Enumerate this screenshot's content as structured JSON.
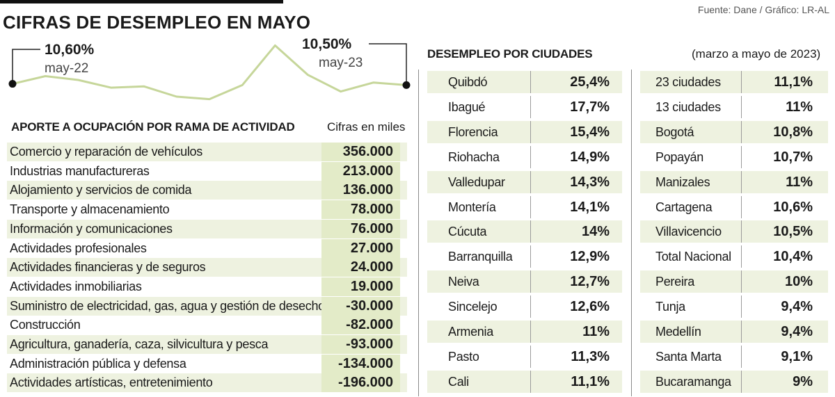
{
  "header": {
    "title": "CIFRAS DE DESEMPLEO EN MAYO",
    "source": "Fuente: Dane / Gráfico: LR-AL"
  },
  "trend": {
    "start_value": "10,60%",
    "start_date": "may-22",
    "end_value": "10,50%",
    "end_date": "may-23",
    "line_color": "#c6d69a",
    "marker_color": "#111111"
  },
  "chart_data": [
    {
      "type": "line",
      "title": "",
      "xlabel": "",
      "ylabel": "",
      "x": [
        "may-22",
        "",
        "",
        "",
        "",
        "",
        "",
        "",
        "",
        "",
        "",
        "",
        "may-23"
      ],
      "series": [
        {
          "values": [
            10.6,
            11.2,
            10.9,
            10.3,
            10.4,
            9.6,
            9.4,
            10.5,
            13.6,
            11.3,
            10.0,
            10.7,
            10.5
          ]
        }
      ],
      "ylim": [
        9.0,
        14.0
      ],
      "grid": false
    },
    {
      "type": "bar",
      "title": "APORTE A OCUPACIÓN POR RAMA DE ACTIVIDAD",
      "unit_note": "Cifras en miles",
      "categories": [
        "Comercio y reparación de vehículos",
        "Industrias manufactureras",
        "Alojamiento y servicios de comida",
        "Transporte y almacenamiento",
        "Información y comunicaciones",
        "Actividades profesionales",
        "Actividades financieras y de seguros",
        "Actividades inmobiliarias",
        "Suministro de electricidad, gas, agua y gestión de desechos",
        "Construcción",
        "Agricultura, ganadería, caza, silvicultura y pesca",
        "Administración pública y defensa",
        "Actividades artísticas, entretenimiento"
      ],
      "values": [
        356000,
        213000,
        136000,
        78000,
        76000,
        27000,
        24000,
        19000,
        -30000,
        -82000,
        -93000,
        -134000,
        -196000
      ],
      "labels": [
        "356.000",
        "213.000",
        "136.000",
        "78.000",
        "76.000",
        "27.000",
        "24.000",
        "19.000",
        "-30.000",
        "-82.000",
        "-93.000",
        "-134.000",
        "-196.000"
      ]
    },
    {
      "type": "table",
      "title": "DESEMPLEO POR CIUDADES",
      "subtitle": "(marzo a mayo de 2023)",
      "left": [
        {
          "city": "Quibdó",
          "value": "25,4%"
        },
        {
          "city": "Ibagué",
          "value": "17,7%"
        },
        {
          "city": "Florencia",
          "value": "15,4%"
        },
        {
          "city": "Riohacha",
          "value": "14,9%"
        },
        {
          "city": "Valledupar",
          "value": "14,3%"
        },
        {
          "city": "Montería",
          "value": "14,1%"
        },
        {
          "city": "Cúcuta",
          "value": "14%"
        },
        {
          "city": "Barranquilla",
          "value": "12,9%"
        },
        {
          "city": "Neiva",
          "value": "12,7%"
        },
        {
          "city": "Sincelejo",
          "value": "12,6%"
        },
        {
          "city": "Armenia",
          "value": "11%"
        },
        {
          "city": "Pasto",
          "value": "11,3%"
        },
        {
          "city": "Cali",
          "value": "11,1%"
        }
      ],
      "right": [
        {
          "city": "23 ciudades",
          "value": "11,1%"
        },
        {
          "city": "13 ciudades",
          "value": "11%"
        },
        {
          "city": "Bogotá",
          "value": "10,8%"
        },
        {
          "city": "Popayán",
          "value": "10,7%"
        },
        {
          "city": "Manizales",
          "value": "11%"
        },
        {
          "city": "Cartagena",
          "value": "10,6%"
        },
        {
          "city": "Villavicencio",
          "value": "10,5%"
        },
        {
          "city": "Total Nacional",
          "value": "10,4%"
        },
        {
          "city": "Pereira",
          "value": "10%"
        },
        {
          "city": "Tunja",
          "value": "9,4%"
        },
        {
          "city": "Medellín",
          "value": "9,4%"
        },
        {
          "city": "Santa Marta",
          "value": "9,1%"
        },
        {
          "city": "Bucaramanga",
          "value": "9%"
        }
      ]
    }
  ],
  "colors": {
    "row_shade": "#eef2e0",
    "value_highlight": "#e3ebc8",
    "divider": "#8a8a8a"
  }
}
